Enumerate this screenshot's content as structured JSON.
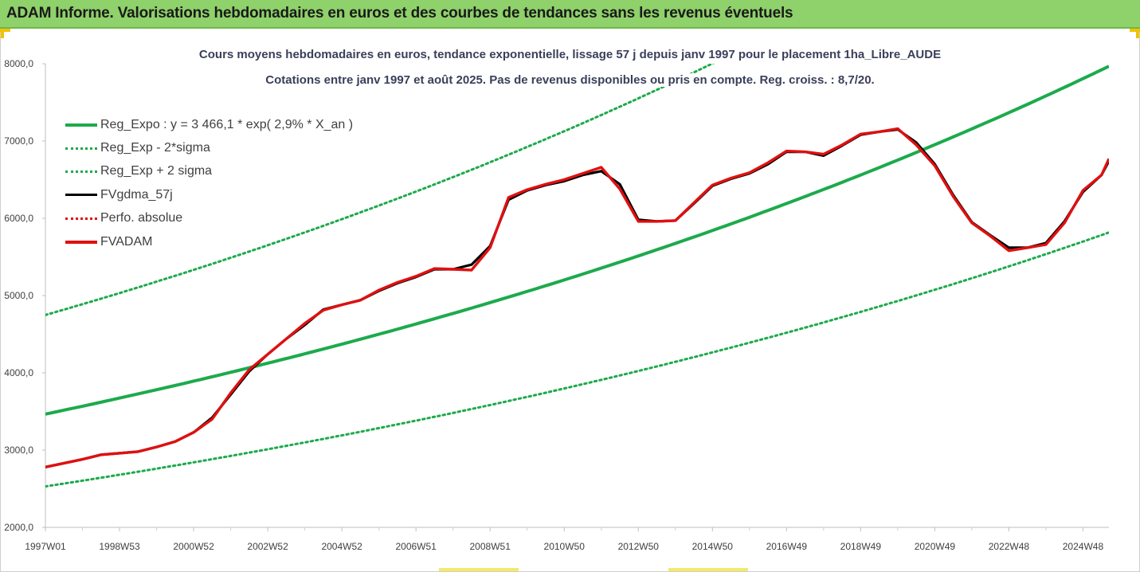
{
  "banner": {
    "title": "ADAM Informe. Valorisations hebdomadaires en euros et des courbes de tendances sans les revenus éventuels"
  },
  "colors": {
    "banner": "#8fd16a",
    "trend_green": "#1daa4c",
    "fv_red": "#e01010",
    "fv_black": "#000000",
    "axis_text": "#404040",
    "title_text": "#3a3f5a"
  },
  "chart_data": {
    "type": "line",
    "title_line1": "Cours moyens hebdomadaires en euros, tendance exponentielle, lissage 57 j depuis janv 1997  pour le placement 1ha_Libre_AUDE",
    "title_line2": "Cotations entre janv 1997 et août 2025.  Pas de revenus disponibles ou pris en compte. Reg. croiss. : 8,7/20.",
    "ylim": [
      2000,
      8000
    ],
    "yticks": [
      "2000,0",
      "3000,0",
      "4000,0",
      "5000,0",
      "6000,0",
      "7000,0",
      "8000,0"
    ],
    "ytick_values": [
      2000,
      3000,
      4000,
      5000,
      6000,
      7000,
      8000
    ],
    "x_range_years": [
      0,
      28.7
    ],
    "xtick_labels": [
      "1997W01",
      "1998W53",
      "2000W52",
      "2002W52",
      "2004W52",
      "2006W51",
      "2008W51",
      "2010W50",
      "2012W50",
      "2014W50",
      "2016W49",
      "2018W49",
      "2020W49",
      "2022W48",
      "2024W48"
    ],
    "xtick_years": [
      0,
      2,
      4,
      6,
      8,
      10,
      12,
      14,
      16,
      18,
      20,
      22,
      24,
      26,
      28
    ],
    "grid": false,
    "legend_position": "top-left",
    "regression": {
      "base": 3466.1,
      "rate": 0.029,
      "lower_factor": 0.73,
      "upper_factor": 1.37
    },
    "series": [
      {
        "name": "Reg_Expo : y = 3 466,1 * exp( 2,9% *  X_an )",
        "style": "solid-green",
        "kind": "regression"
      },
      {
        "name": "Reg_Exp - 2*sigma",
        "style": "dotted-green",
        "kind": "lower"
      },
      {
        "name": "Reg_Exp + 2 sigma",
        "style": "dotted-green",
        "kind": "upper"
      },
      {
        "name": "FVgdma_57j",
        "style": "solid-black",
        "kind": "data",
        "x": [
          0,
          1,
          1.5,
          2,
          2.5,
          3,
          3.5,
          4,
          4.5,
          5,
          5.5,
          6,
          6.5,
          7,
          7.5,
          8,
          8.5,
          9,
          9.5,
          10,
          10.5,
          11,
          11.5,
          12,
          12.5,
          13,
          13.5,
          14,
          14.5,
          15,
          15.5,
          16,
          16.5,
          17,
          17.5,
          18,
          18.5,
          19,
          19.5,
          20,
          20.5,
          21,
          21.5,
          22,
          22.5,
          23,
          23.5,
          24,
          24.5,
          25,
          25.5,
          26,
          26.5,
          27,
          27.5,
          28,
          28.5,
          28.7
        ],
        "y": [
          2780,
          2880,
          2940,
          2960,
          2980,
          3040,
          3110,
          3230,
          3420,
          3720,
          4020,
          4240,
          4440,
          4620,
          4820,
          4880,
          4940,
          5060,
          5160,
          5240,
          5340,
          5340,
          5400,
          5640,
          6240,
          6360,
          6430,
          6480,
          6560,
          6610,
          6440,
          5980,
          5960,
          5970,
          6190,
          6420,
          6510,
          6580,
          6700,
          6860,
          6860,
          6810,
          6940,
          7080,
          7120,
          7150,
          6980,
          6700,
          6300,
          5950,
          5780,
          5620,
          5620,
          5680,
          5960,
          6340,
          6560,
          6740
        ]
      },
      {
        "name": "Perfo. absolue",
        "style": "dotted-red",
        "kind": "hidden"
      },
      {
        "name": "FVADAM",
        "style": "solid-red",
        "kind": "data",
        "x": [
          0,
          1,
          1.5,
          2,
          2.5,
          3,
          3.5,
          4,
          4.5,
          5,
          5.5,
          6,
          6.5,
          7,
          7.5,
          8,
          8.5,
          9,
          9.5,
          10,
          10.5,
          11,
          11.5,
          12,
          12.5,
          13,
          13.5,
          14,
          14.5,
          15,
          15.5,
          16,
          16.5,
          17,
          17.5,
          18,
          18.5,
          19,
          19.5,
          20,
          20.5,
          21,
          21.5,
          22,
          22.5,
          23,
          23.5,
          24,
          24.5,
          25,
          25.5,
          26,
          26.5,
          27,
          27.5,
          28,
          28.5,
          28.7
        ],
        "y": [
          2780,
          2880,
          2940,
          2960,
          2980,
          3040,
          3110,
          3230,
          3400,
          3740,
          4040,
          4240,
          4440,
          4640,
          4810,
          4880,
          4940,
          5070,
          5170,
          5250,
          5350,
          5340,
          5330,
          5620,
          6270,
          6370,
          6440,
          6500,
          6580,
          6660,
          6380,
          5960,
          5960,
          5970,
          6200,
          6430,
          6520,
          6590,
          6720,
          6870,
          6860,
          6830,
          6950,
          7090,
          7120,
          7160,
          6950,
          6680,
          6280,
          5940,
          5770,
          5580,
          5620,
          5660,
          5940,
          6360,
          6560,
          6770
        ]
      }
    ]
  }
}
